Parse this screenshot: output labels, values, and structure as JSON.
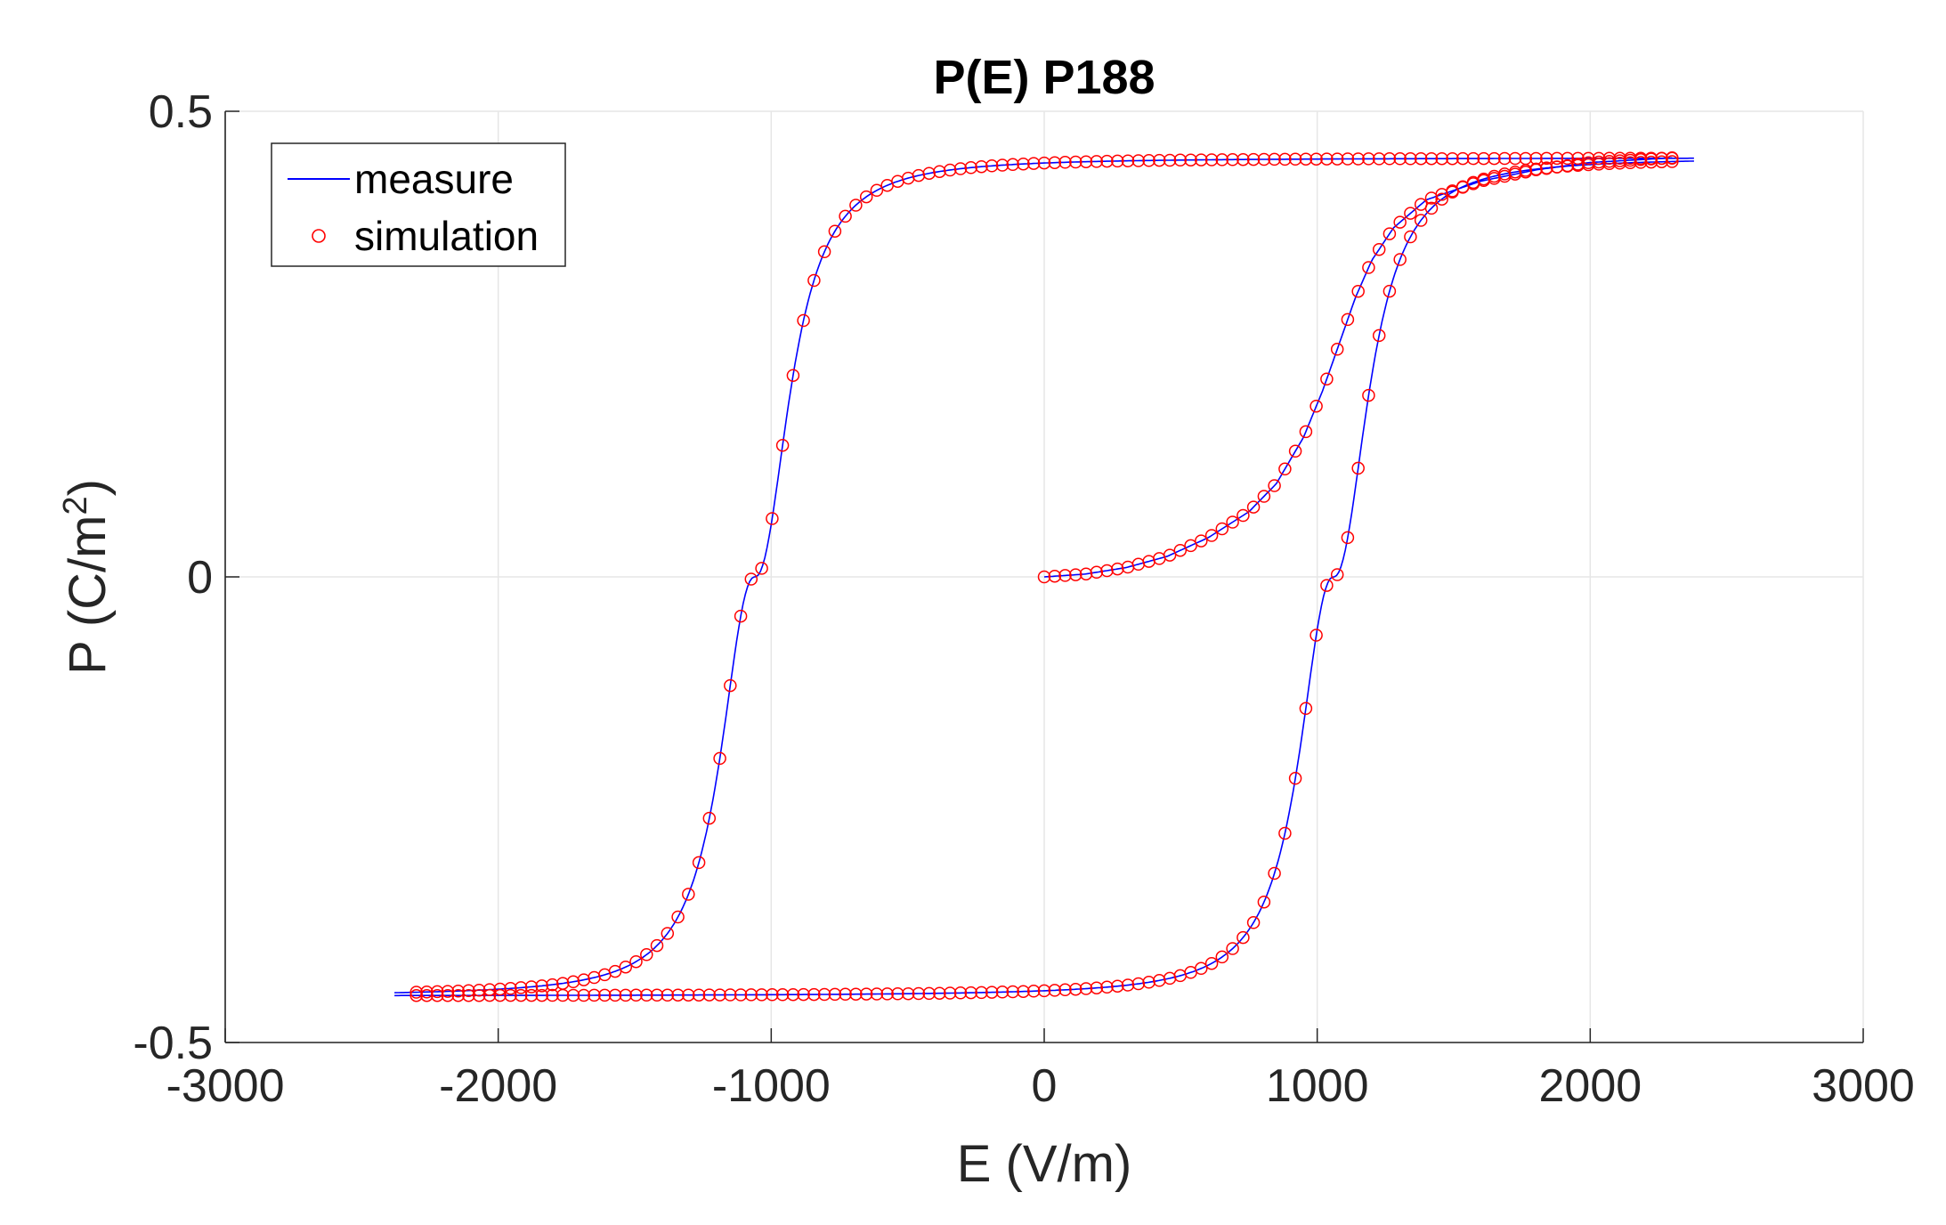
{
  "chart_data": {
    "type": "line",
    "title": "P(E) P188",
    "xlabel": "E (V/m)",
    "ylabel_main": "P (C/m",
    "ylabel_sup": "2",
    "ylabel_close": ")",
    "xlim": [
      -3000,
      3000
    ],
    "ylim": [
      -0.5,
      0.5
    ],
    "x_ticks": [
      -3000,
      -2000,
      -1000,
      0,
      1000,
      2000,
      3000
    ],
    "x_tick_labels": [
      "-3000",
      "-2000",
      "-1000",
      "0",
      "1000",
      "2000",
      "3000"
    ],
    "y_ticks": [
      -0.5,
      0,
      0.5
    ],
    "y_tick_labels": [
      "-0.5",
      "0",
      "0.5"
    ],
    "grid": true,
    "legend_position": "top-left",
    "loop": {
      "Ps": 0.45,
      "Pr": 0.39,
      "Ec": 1060,
      "Emax": 2300,
      "initial_curve": {
        "x": [
          0,
          150,
          300,
          450,
          600,
          750,
          850,
          950,
          1020,
          1080,
          1140,
          1200,
          1280,
          1400,
          1600,
          1800,
          2000,
          2300
        ],
        "y": [
          0,
          0.003,
          0.01,
          0.022,
          0.042,
          0.07,
          0.1,
          0.15,
          0.2,
          0.25,
          0.3,
          0.34,
          0.375,
          0.405,
          0.425,
          0.437,
          0.445,
          0.45
        ]
      }
    },
    "series": [
      {
        "name": "measure",
        "style": "line",
        "color": "#0000ff"
      },
      {
        "name": "simulation",
        "style": "marker",
        "marker": "circle",
        "color": "#ff0000"
      }
    ]
  }
}
